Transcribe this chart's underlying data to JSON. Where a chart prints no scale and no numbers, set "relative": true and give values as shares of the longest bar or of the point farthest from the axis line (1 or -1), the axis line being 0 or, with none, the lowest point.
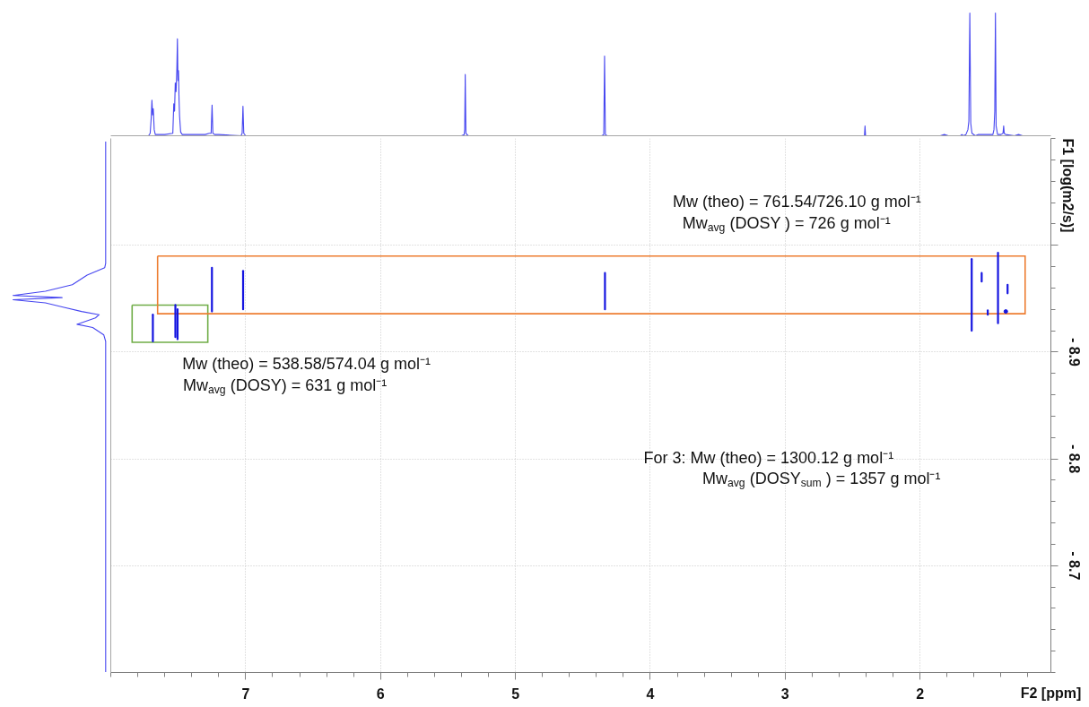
{
  "chart_data": [
    {
      "type": "line",
      "relative": true,
      "xlim": [
        8.0,
        1.03
      ],
      "tick_labels": false,
      "color": "#4646f0",
      "x": [
        7.99,
        7.72,
        7.708,
        7.7,
        7.695,
        7.69,
        7.685,
        7.678,
        7.67,
        7.6,
        7.54,
        7.533,
        7.527,
        7.522,
        7.516,
        7.51,
        7.506,
        7.502,
        7.498,
        7.494,
        7.49,
        7.482,
        7.47,
        7.3,
        7.27,
        7.256,
        7.249,
        7.243,
        7.23,
        7.2,
        7.035,
        7.026,
        7.02,
        7.014,
        7.0,
        5.4,
        5.38,
        5.376,
        5.372,
        5.367,
        5.35,
        4.36,
        4.345,
        4.339,
        4.333,
        4.32,
        2.42,
        2.412,
        2.408,
        2.404,
        2.0,
        1.85,
        1.82,
        1.79,
        1.7,
        1.69,
        1.68,
        1.66,
        1.645,
        1.638,
        1.631,
        1.624,
        1.615,
        1.59,
        1.57,
        1.55,
        1.53,
        1.515,
        1.46,
        1.452,
        1.446,
        1.441,
        1.436,
        1.425,
        1.4,
        1.385,
        1.38,
        1.376,
        1.365,
        1.3,
        1.27,
        1.24,
        1.04
      ],
      "values": [
        0,
        0,
        0.02,
        0.15,
        0.29,
        0.17,
        0.22,
        0.05,
        0.01,
        0.01,
        0.02,
        0.26,
        0.2,
        0.43,
        0.36,
        0.55,
        0.79,
        0.45,
        0.53,
        0.3,
        0.16,
        0.03,
        0.01,
        0.01,
        0.02,
        0.02,
        0.25,
        0.02,
        0.01,
        0.01,
        0,
        0.02,
        0.24,
        0.02,
        0,
        0,
        0.01,
        0.05,
        0.5,
        0.02,
        0,
        0,
        0.01,
        0.65,
        0.01,
        0,
        0,
        0,
        0.08,
        0,
        0,
        0,
        0.01,
        0,
        0,
        0.01,
        0,
        0.01,
        0.05,
        0.12,
        1.0,
        0.1,
        0.02,
        0,
        0.01,
        0.01,
        0.01,
        0.01,
        0.01,
        0.05,
        0.2,
        1.0,
        0.08,
        0.01,
        0.01,
        0.02,
        0.08,
        0.02,
        0.01,
        0,
        0.01,
        0,
        0
      ]
    },
    {
      "type": "line",
      "xlabel": "F2 [ppm]",
      "ylabel": "F1 [log(m2/s)]",
      "xlim": [
        8.0,
        1.03
      ],
      "ylim": [
        -8.6,
        -9.1
      ],
      "xticks": [
        7,
        6,
        5,
        4,
        3,
        2
      ],
      "yticks": [
        {
          "value": -9.0,
          "label": null
        },
        {
          "value": -8.9,
          "label": "- 8.9"
        },
        {
          "value": -8.8,
          "label": "- 8.8"
        },
        {
          "value": -8.7,
          "label": "- 8.7"
        }
      ],
      "grid": true,
      "series": [
        {
          "color": "#1414e0",
          "x": [
            7.688,
            7.688
          ],
          "values": [
            -8.935,
            -8.91
          ]
        },
        {
          "color": "#1414e0",
          "x": [
            7.521,
            7.521
          ],
          "values": [
            -8.944,
            -8.914
          ]
        },
        {
          "color": "#1414e0",
          "x": [
            7.505,
            7.505
          ],
          "values": [
            -8.94,
            -8.912
          ]
        },
        {
          "color": "#1414e0",
          "x": [
            7.25,
            7.25
          ],
          "values": [
            -8.979,
            -8.938
          ]
        },
        {
          "color": "#1414e0",
          "x": [
            7.019,
            7.019
          ],
          "values": [
            -8.976,
            -8.94
          ]
        },
        {
          "color": "#1414e0",
          "x": [
            4.336,
            4.336
          ],
          "values": [
            -8.974,
            -8.94
          ]
        },
        {
          "color": "#1414e0",
          "x": [
            1.617,
            1.617
          ],
          "values": [
            -8.987,
            -8.92
          ]
        },
        {
          "color": "#1414e0",
          "x": [
            1.543,
            1.543
          ],
          "values": [
            -8.974,
            -8.966
          ]
        },
        {
          "color": "#1414e0",
          "x": [
            1.498,
            1.498
          ],
          "values": [
            -8.939,
            -8.935
          ]
        },
        {
          "color": "#1414e0",
          "x": [
            1.422,
            1.422
          ],
          "values": [
            -8.993,
            -8.927
          ]
        },
        {
          "color": "#1414e0",
          "x": [
            1.351,
            1.351
          ],
          "values": [
            -8.963,
            -8.955
          ]
        },
        {
          "type": "scatter",
          "marker": "circle",
          "color": "#1414e0",
          "x": [
            1.364
          ],
          "values": [
            -8.938
          ]
        }
      ],
      "annotations": [
        "Mw (theo) = 761.54/726.10  g mol⁻¹",
        "Mw$_{avg}$ (DOSY ) = 726 g mol⁻¹",
        "Mw (theo) = 538.58/574.04  g mol⁻¹",
        "Mw$_{avg}$ (DOSY) = 631 g mol⁻¹",
        "For 3:  Mw (theo) = 1300.12 g mol⁻¹",
        "Mw$_{avg}$ (DOSY$_{sum}$ ) = 1357 g mol⁻¹"
      ]
    }
  ]
}
